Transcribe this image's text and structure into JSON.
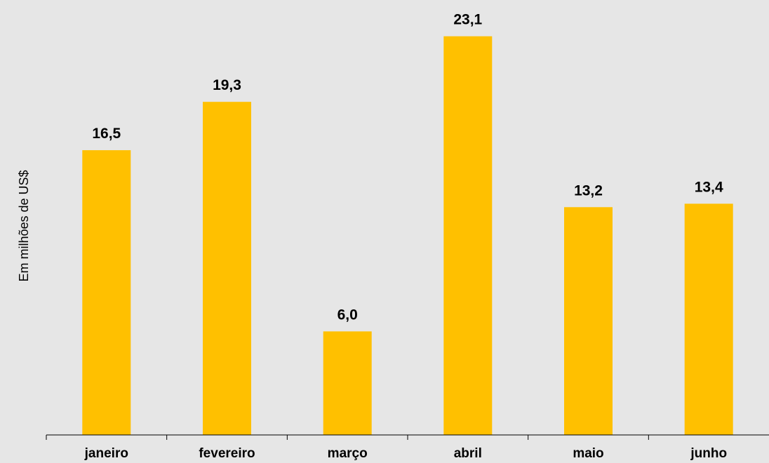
{
  "chart_data": {
    "type": "bar",
    "title": "",
    "xlabel": "",
    "ylabel": "Em milhões de US$",
    "categories": [
      "janeiro",
      "fevereiro",
      "março",
      "abril",
      "maio",
      "junho"
    ],
    "values": [
      16.5,
      19.3,
      6.0,
      23.1,
      13.2,
      13.4
    ],
    "data_labels": [
      "16,5",
      "19,3",
      "6,0",
      "23,1",
      "13,2",
      "13,4"
    ],
    "ylim": [
      0,
      25
    ],
    "grid": false,
    "legend": "none",
    "bar_color": "#ffc000",
    "background_color": "#e6e6e6"
  }
}
